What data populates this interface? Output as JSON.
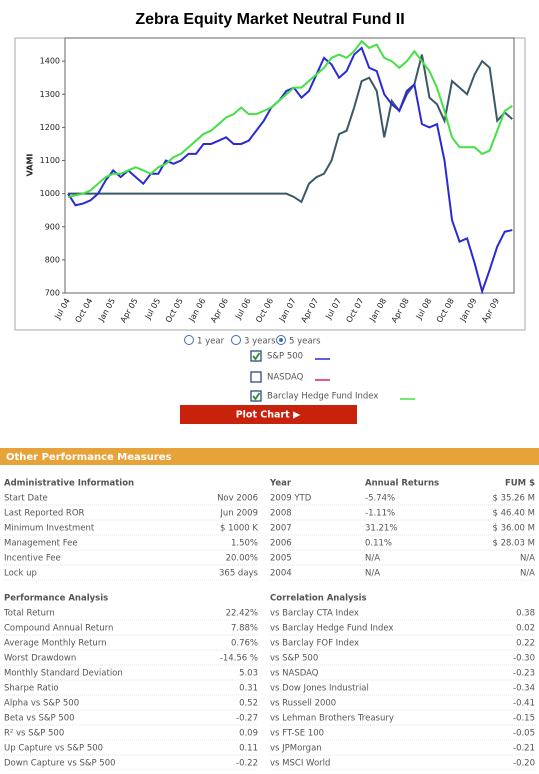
{
  "chart_data": {
    "type": "line",
    "title": "Zebra Equity Market Neutral Fund II",
    "y_label": "VAMI",
    "categories": [
      "Jul 04",
      null,
      null,
      "Oct 04",
      null,
      null,
      "Jan 05",
      null,
      null,
      "Apr 05",
      null,
      null,
      "Jul 05",
      null,
      null,
      "Oct 05",
      null,
      null,
      "Jan 06",
      null,
      null,
      "Apr 06",
      null,
      null,
      "Jul 06",
      null,
      null,
      "Oct 06",
      null,
      null,
      "Jan 07",
      null,
      null,
      "Apr 07",
      null,
      null,
      "Jul 07",
      null,
      null,
      "Oct 07",
      null,
      null,
      "Jan 08",
      null,
      null,
      "Apr 08",
      null,
      null,
      "Jul 08",
      null,
      null,
      "Oct 08",
      null,
      null,
      "Jan 09",
      null,
      null,
      "Apr 09",
      null,
      null
    ],
    "series": [
      {
        "color": "#3a5968",
        "values": [
          1000,
          1000,
          1000,
          1000,
          1000,
          1000,
          1000,
          1000,
          1000,
          1000,
          1000,
          1000,
          1000,
          1000,
          1000,
          1000,
          1000,
          1000,
          1000,
          1000,
          1000,
          1000,
          1000,
          1000,
          1000,
          1000,
          1000,
          1000,
          1000,
          1000,
          990,
          975,
          1030,
          1050,
          1060,
          1100,
          1180,
          1190,
          1260,
          1340,
          1350,
          1310,
          1170,
          1280,
          1250,
          1300,
          1330,
          1420,
          1290,
          1270,
          1220,
          1340,
          1320,
          1300,
          1360,
          1400,
          1380,
          1220,
          1245,
          1225
        ]
      },
      {
        "name": "S&P 500",
        "color": "#2a2ad4",
        "values": [
          1000,
          965,
          970,
          980,
          1000,
          1040,
          1070,
          1050,
          1070,
          1050,
          1030,
          1060,
          1060,
          1100,
          1090,
          1100,
          1120,
          1120,
          1150,
          1150,
          1160,
          1170,
          1150,
          1150,
          1160,
          1190,
          1220,
          1260,
          1280,
          1310,
          1320,
          1290,
          1310,
          1360,
          1410,
          1390,
          1350,
          1370,
          1420,
          1440,
          1380,
          1370,
          1300,
          1270,
          1250,
          1310,
          1330,
          1210,
          1200,
          1210,
          1100,
          920,
          855,
          865,
          790,
          705,
          770,
          840,
          885,
          890
        ]
      },
      {
        "name": "Barclay Hedge Fund Index",
        "color": "#44e044",
        "values": [
          990,
          995,
          1000,
          1010,
          1030,
          1050,
          1060,
          1060,
          1070,
          1080,
          1070,
          1060,
          1080,
          1090,
          1110,
          1120,
          1140,
          1160,
          1180,
          1190,
          1210,
          1230,
          1240,
          1260,
          1240,
          1240,
          1250,
          1260,
          1280,
          1300,
          1320,
          1320,
          1340,
          1360,
          1380,
          1410,
          1420,
          1410,
          1430,
          1460,
          1440,
          1450,
          1410,
          1400,
          1380,
          1400,
          1430,
          1400,
          1370,
          1320,
          1250,
          1170,
          1140,
          1140,
          1140,
          1120,
          1130,
          1190,
          1250,
          1265
        ]
      }
    ],
    "ylim": [
      700,
      1470
    ],
    "yticks": [
      700,
      800,
      900,
      1000,
      1100,
      1200,
      1300,
      1400
    ],
    "grid": false
  },
  "controls": {
    "periods": [
      {
        "label": "1 year",
        "selected": false
      },
      {
        "label": "3 years",
        "selected": false
      },
      {
        "label": "5 years",
        "selected": true
      }
    ],
    "legend": [
      {
        "label": "S&P 500",
        "checked": true,
        "color": "#2a2ad4"
      },
      {
        "label": "NASDAQ",
        "checked": false,
        "color": "#e0205a"
      },
      {
        "label": "Barclay Hedge Fund Index",
        "checked": true,
        "color": "#44e044"
      }
    ],
    "button": "Plot Chart ▶"
  },
  "section": {
    "title": "Other Performance Measures",
    "tables": [
      {
        "headers": [
          "Administrative Information"
        ],
        "rows": [
          [
            "Start Date",
            "Nov 2006"
          ],
          [
            "Last Reported ROR",
            "Jun 2009"
          ],
          [
            "Minimum Investment",
            "$ 1000 K"
          ],
          [
            "Management Fee",
            "1.50%"
          ],
          [
            "Incentive Fee",
            "20.00%"
          ],
          [
            "Lock up",
            "365 days"
          ]
        ]
      },
      {
        "headers": [
          "Year",
          "Annual Returns",
          "FUM $"
        ],
        "rows": [
          [
            "2009 YTD",
            "-5.74%",
            "$ 35.26 M"
          ],
          [
            "2008",
            "-1.11%",
            "$ 46.40 M"
          ],
          [
            "2007",
            "31.21%",
            "$ 36.00 M"
          ],
          [
            "2006",
            "0.11%",
            "$ 28.03 M"
          ],
          [
            "2005",
            "N/A",
            "N/A"
          ],
          [
            "2004",
            "N/A",
            "N/A"
          ]
        ]
      },
      {
        "headers": [
          "Performance Analysis"
        ],
        "rows": [
          [
            "Total Return",
            "22.42%"
          ],
          [
            "Compound Annual Return",
            "7.88%"
          ],
          [
            "Average Monthly Return",
            "0.76%"
          ],
          [
            "Worst Drawdown",
            "-14.56 %"
          ],
          [
            "Monthly Standard Deviation",
            "5.03"
          ],
          [
            "Sharpe Ratio",
            "0.31"
          ],
          [
            "Alpha vs S&P 500",
            "0.52"
          ],
          [
            "Beta vs S&P 500",
            "-0.27"
          ],
          [
            "R² vs S&P 500",
            "0.09"
          ],
          [
            "Up Capture vs S&P 500",
            "0.11"
          ],
          [
            "Down Capture vs S&P 500",
            "-0.22"
          ]
        ]
      },
      {
        "headers": [
          "Correlation Analysis"
        ],
        "rows": [
          [
            "vs Barclay CTA Index",
            "0.38"
          ],
          [
            "vs Barclay Hedge Fund Index",
            "0.02"
          ],
          [
            "vs Barclay FOF Index",
            "0.22"
          ],
          [
            "vs S&P 500",
            "-0.30"
          ],
          [
            "vs NASDAQ",
            "-0.23"
          ],
          [
            "vs Dow Jones Industrial",
            "-0.34"
          ],
          [
            "vs Russell 2000",
            "-0.41"
          ],
          [
            "vs Lehman Brothers Treasury",
            "-0.15"
          ],
          [
            "vs FT-SE 100",
            "-0.05"
          ],
          [
            "vs JPMorgan",
            "-0.21"
          ],
          [
            "vs MSCI World",
            "-0.20"
          ]
        ]
      }
    ]
  }
}
